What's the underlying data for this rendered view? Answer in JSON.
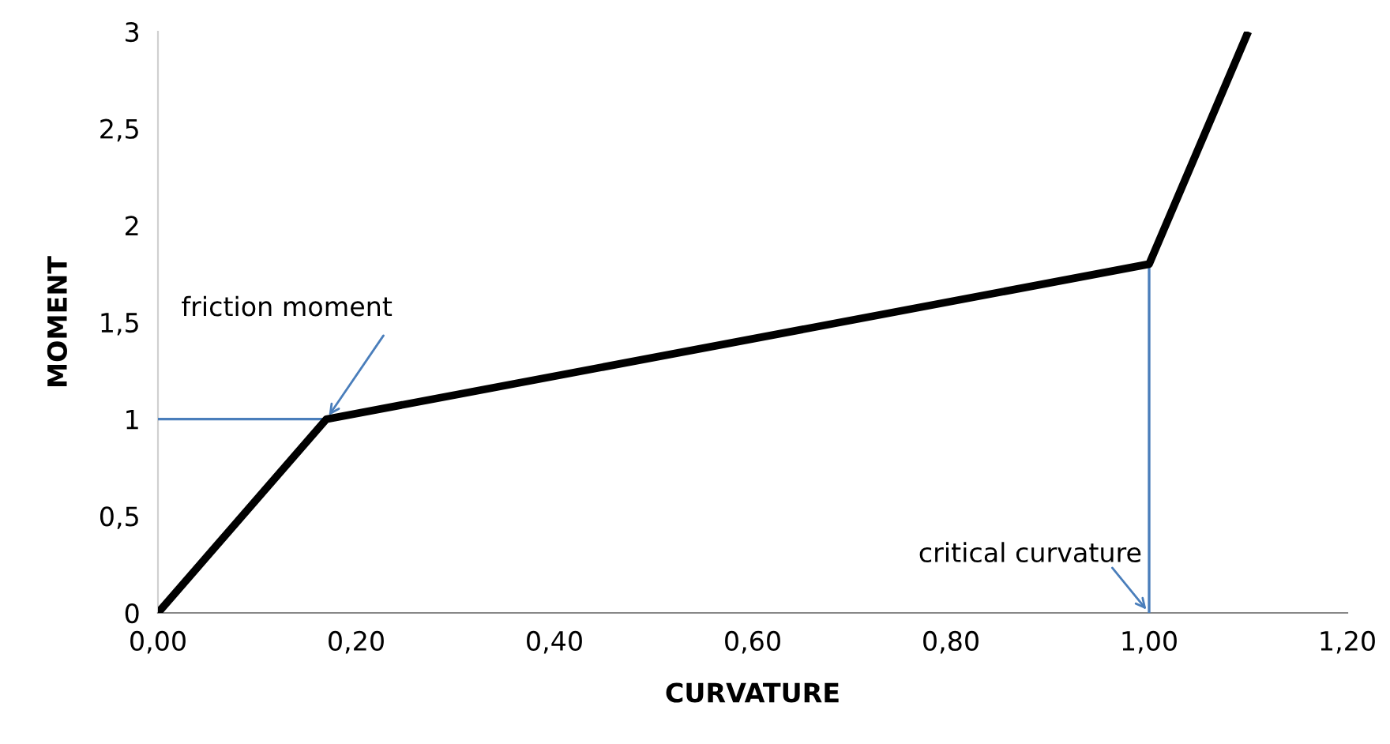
{
  "chart_data": {
    "type": "line",
    "xlabel": "CURVATURE",
    "ylabel": "MOMENT",
    "xlim": [
      0,
      1.2
    ],
    "ylim": [
      0,
      3
    ],
    "xticks": [
      {
        "value": 0,
        "label": "0,00"
      },
      {
        "value": 0.2,
        "label": "0,20"
      },
      {
        "value": 0.4,
        "label": "0,40"
      },
      {
        "value": 0.6,
        "label": "0,60"
      },
      {
        "value": 0.8,
        "label": "0,80"
      },
      {
        "value": 1.0,
        "label": "1,00"
      },
      {
        "value": 1.2,
        "label": "1,20"
      }
    ],
    "yticks": [
      0,
      {
        "value": 0.5,
        "label": "0,5"
      },
      1,
      {
        "value": 1.5,
        "label": "1,5"
      },
      2,
      {
        "value": 2.5,
        "label": "2,5"
      },
      3
    ],
    "grid": false,
    "legend": false,
    "marker": "none",
    "line_style": "solid",
    "series": [
      {
        "color": "#000000",
        "x": [
          0,
          0.17,
          1.0,
          1.1
        ],
        "values": [
          0,
          1,
          1.8,
          3
        ]
      },
      {
        "color": "#4a7ebb",
        "x": [
          0,
          0.17
        ],
        "values": [
          1,
          1
        ]
      },
      {
        "color": "#4a7ebb",
        "x": [
          1.0,
          1.0
        ],
        "values": [
          1.8,
          0
        ]
      }
    ],
    "annotations": [
      {
        "text": "friction moment",
        "x": 0.17,
        "y": 1
      },
      {
        "text": "critical curvature",
        "x": 1.0,
        "y": 0
      }
    ]
  }
}
